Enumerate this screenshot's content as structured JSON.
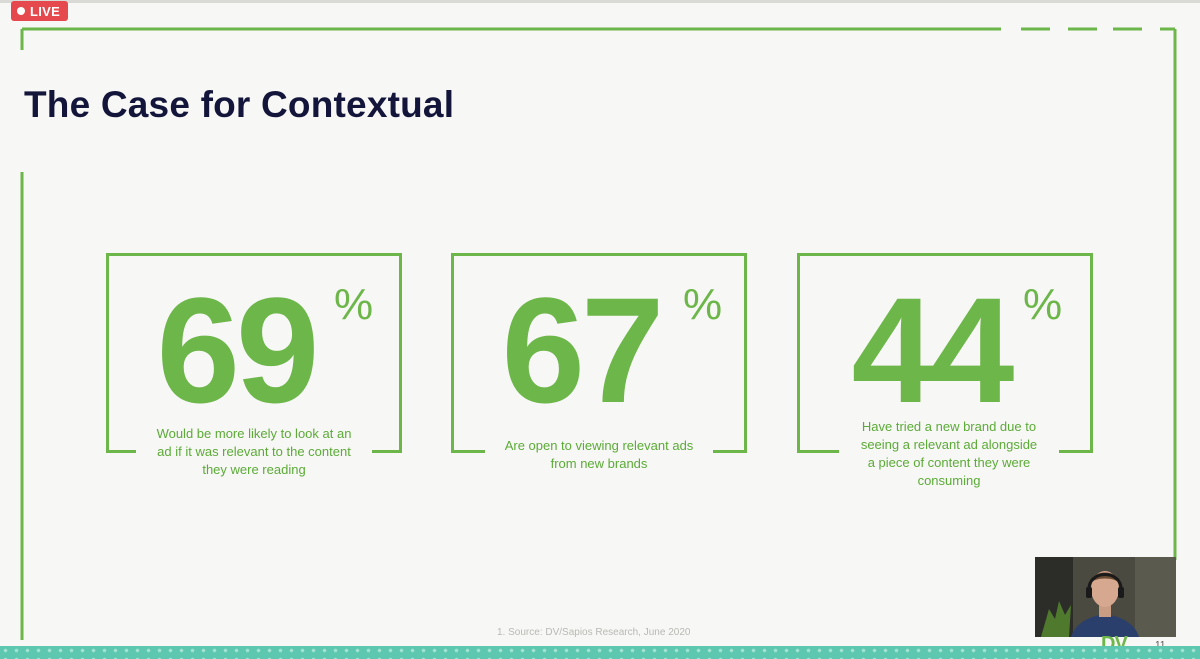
{
  "live_badge": {
    "label": "LIVE",
    "color": "#e5484d"
  },
  "slide": {
    "title": "The Case for Contextual",
    "accent_color": "#6db64a",
    "title_color": "#13163a",
    "stats": [
      {
        "value": "69",
        "unit": "%",
        "caption_lines": [
          "Would be more likely to look at an",
          "ad if it was relevant to the content",
          "they were reading"
        ]
      },
      {
        "value": "67",
        "unit": "%",
        "caption_lines": [
          "Are open to viewing relevant ads",
          "from new brands"
        ]
      },
      {
        "value": "44",
        "unit": "%",
        "caption_lines": [
          "Have tried a new brand due to",
          "seeing a relevant ad alongside",
          "a piece of content they were",
          "consuming"
        ]
      }
    ],
    "source_note": "1. Source: DV/Sapios Research, June 2020",
    "logo_text": "DV",
    "page_number": "11"
  },
  "webcam": {
    "icon": "presenter-webcam-icon"
  }
}
